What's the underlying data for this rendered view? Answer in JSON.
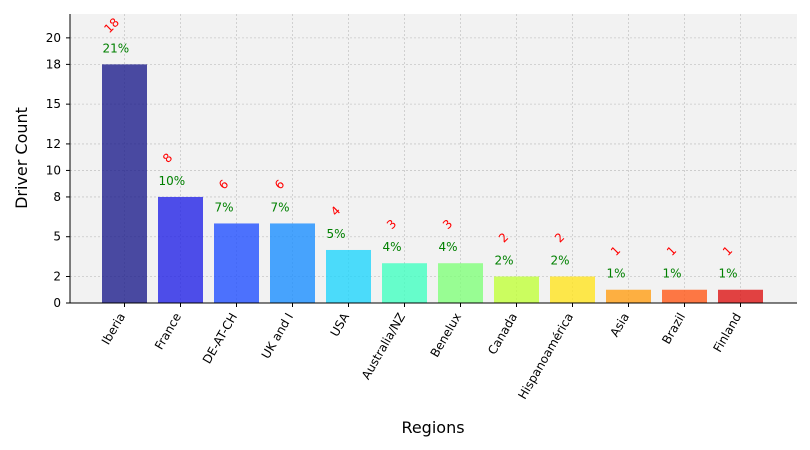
{
  "chart_data": {
    "type": "bar",
    "title": "",
    "xlabel": "Regions",
    "ylabel": "Driver Count",
    "categories": [
      "Iberia",
      "France",
      "DE-AT-CH",
      "UK and I",
      "USA",
      "Australia/NZ",
      "Benelux",
      "Canada",
      "Hispanoamérica",
      "Asia",
      "Brazil",
      "Finland"
    ],
    "values": [
      18,
      8,
      6,
      6,
      4,
      3,
      3,
      2,
      2,
      1,
      1,
      1
    ],
    "count_labels": [
      "18",
      "8",
      "6",
      "6",
      "4",
      "3",
      "3",
      "2",
      "2",
      "1",
      "1",
      "1"
    ],
    "percent_labels": [
      "21%",
      "10%",
      "7%",
      "7%",
      "5%",
      "4%",
      "4%",
      "2%",
      "2%",
      "1%",
      "1%",
      "1%"
    ],
    "yticks": [
      0,
      2,
      5,
      8,
      10,
      12,
      15,
      18,
      20
    ],
    "ytick_labels": [
      "0",
      "2",
      "5",
      "8",
      "10",
      "12",
      "15",
      "18",
      "20"
    ],
    "ylim": [
      0,
      21.8
    ],
    "grid": true,
    "colors": [
      "#1e1e8c",
      "#2323e6",
      "#2250ff",
      "#1b8fff",
      "#21d4fb",
      "#42ffc0",
      "#81ff7b",
      "#c1ff3a",
      "#ffe41f",
      "#ff9d14",
      "#ff5818",
      "#dc1414"
    ],
    "bar_opacity": 0.8,
    "count_label_color": "#ff0000",
    "percent_label_color": "#008000",
    "plot_background": "#f2f2f2"
  }
}
